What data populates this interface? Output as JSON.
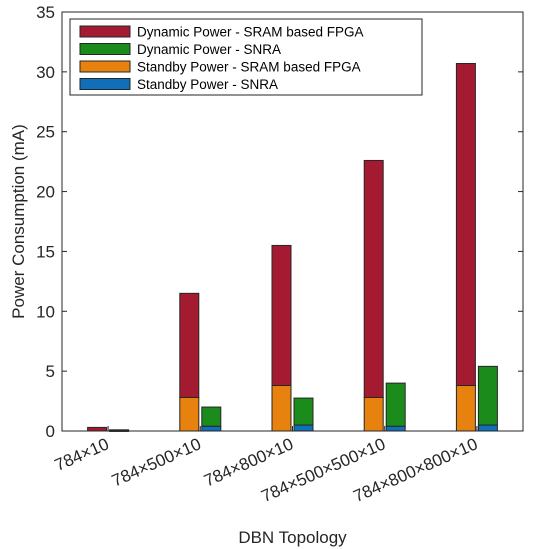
{
  "chart_data": {
    "type": "bar",
    "stacked": true,
    "grouped": true,
    "xlabel": "DBN Topology",
    "ylabel": "Power Consumption (mA)",
    "ylim": [
      0,
      35
    ],
    "yticks": [
      0,
      5,
      10,
      15,
      20,
      25,
      30,
      35
    ],
    "grid": false,
    "legend_position": "top-left",
    "categories": [
      "784×10",
      "784×500×10",
      "784×800×10",
      "784×500×500×10",
      "784×800×800×10"
    ],
    "groups": [
      {
        "name": "SRAM based FPGA",
        "stack": [
          {
            "name": "Standby Power - SRAM based FPGA",
            "color": "#e8820f",
            "values": [
              0.0,
              2.8,
              3.8,
              2.8,
              3.8
            ]
          },
          {
            "name": "Dynamic Power - SRAM based FPGA",
            "color": "#a31a31",
            "values": [
              0.3,
              8.7,
              11.7,
              19.8,
              26.9
            ]
          }
        ]
      },
      {
        "name": "SNRA",
        "stack": [
          {
            "name": "Standby Power - SNRA",
            "color": "#0f6fb9",
            "values": [
              0.03,
              0.4,
              0.5,
              0.4,
              0.5
            ]
          },
          {
            "name": "Dynamic Power - SNRA",
            "color": "#1b8b1b",
            "values": [
              0.07,
              1.6,
              2.25,
              3.6,
              4.9
            ]
          }
        ]
      }
    ],
    "legend": [
      {
        "label": "Dynamic Power - SRAM based FPGA",
        "color": "#a31a31"
      },
      {
        "label": "Dynamic Power - SNRA",
        "color": "#1b8b1b"
      },
      {
        "label": "Standby Power - SRAM based FPGA",
        "color": "#e8820f"
      },
      {
        "label": "Standby Power - SNRA",
        "color": "#0f6fb9"
      }
    ]
  }
}
